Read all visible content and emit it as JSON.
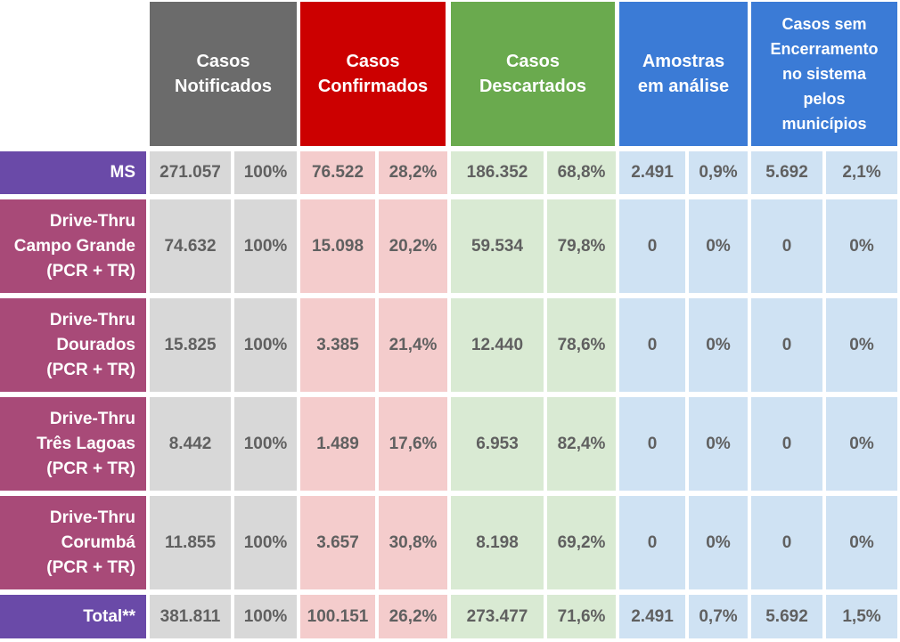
{
  "headers": {
    "notificados": [
      "Casos",
      "Notificados"
    ],
    "confirmados": [
      "Casos",
      "Confirmados"
    ],
    "descartados": [
      "Casos",
      "Descartados"
    ],
    "analise": [
      "Amostras",
      "em análise"
    ],
    "sem_encerramento": [
      "Casos sem",
      "Encerramento",
      "no sistema",
      "pelos",
      "municípios"
    ]
  },
  "rows": [
    {
      "label": [
        "MS"
      ],
      "values": [
        "271.057",
        "100%",
        "76.522",
        "28,2%",
        "186.352",
        "68,8%",
        "2.491",
        "0,9%",
        "5.692",
        "2,1%"
      ]
    },
    {
      "label": [
        "Drive-Thru",
        "Campo Grande",
        "(PCR + TR)"
      ],
      "values": [
        "74.632",
        "100%",
        "15.098",
        "20,2%",
        "59.534",
        "79,8%",
        "0",
        "0%",
        "0",
        "0%"
      ]
    },
    {
      "label": [
        "Drive-Thru",
        "Dourados",
        "(PCR + TR)"
      ],
      "values": [
        "15.825",
        "100%",
        "3.385",
        "21,4%",
        "12.440",
        "78,6%",
        "0",
        "0%",
        "0",
        "0%"
      ]
    },
    {
      "label": [
        "Drive-Thru",
        "Três Lagoas",
        "(PCR + TR)"
      ],
      "values": [
        "8.442",
        "100%",
        "1.489",
        "17,6%",
        "6.953",
        "82,4%",
        "0",
        "0%",
        "0",
        "0%"
      ]
    },
    {
      "label": [
        "Drive-Thru",
        "Corumbá",
        "(PCR + TR)"
      ],
      "values": [
        "11.855",
        "100%",
        "3.657",
        "30,8%",
        "8.198",
        "69,2%",
        "0",
        "0%",
        "0",
        "0%"
      ]
    },
    {
      "label": [
        "Total**"
      ],
      "values": [
        "381.811",
        "100%",
        "100.151",
        "26,2%",
        "273.477",
        "71,6%",
        "2.491",
        "0,7%",
        "5.692",
        "1,5%"
      ]
    }
  ]
}
